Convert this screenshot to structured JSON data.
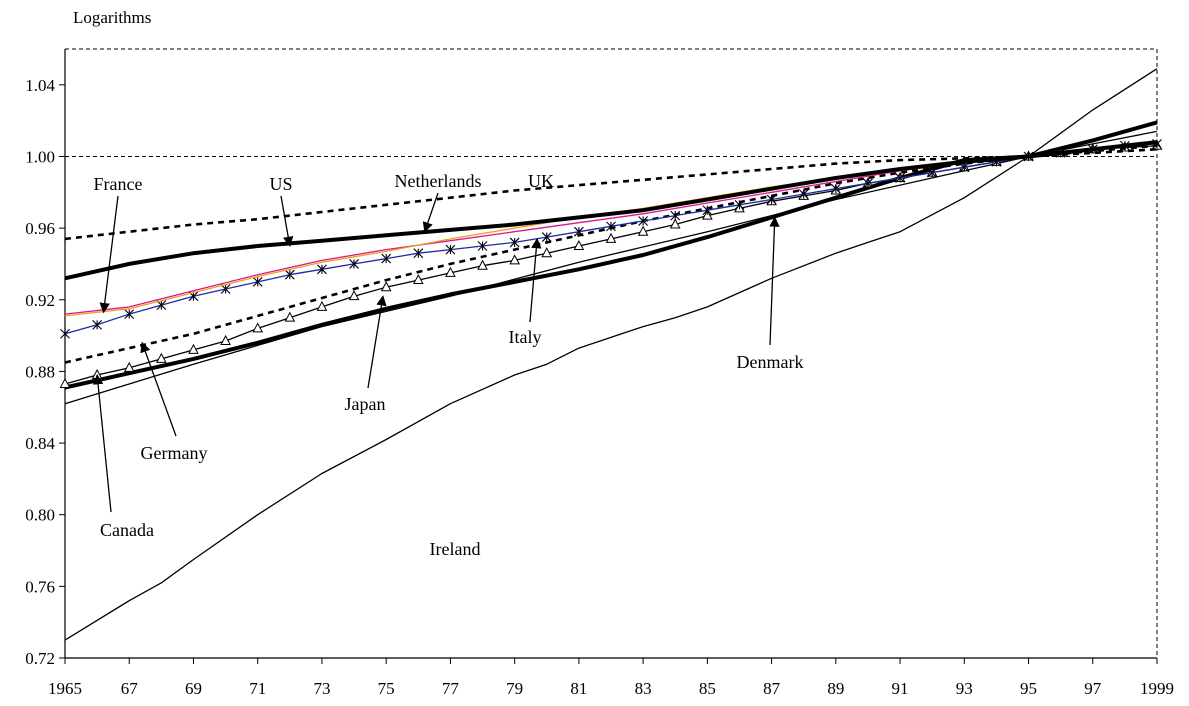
{
  "chart_data": {
    "type": "line",
    "ylabel": "Logarithms",
    "ylim": [
      0.72,
      1.06
    ],
    "yticks": [
      0.72,
      0.76,
      0.8,
      0.84,
      0.88,
      0.92,
      0.96,
      1.0,
      1.04
    ],
    "ytick_labels": [
      "0.72",
      "0.76",
      "0.80",
      "0.84",
      "0.88",
      "0.92",
      "0.96",
      "1.00",
      "1.04"
    ],
    "xlim": [
      1965,
      1999
    ],
    "xticks": [
      1965,
      1967,
      1969,
      1971,
      1973,
      1975,
      1977,
      1979,
      1981,
      1983,
      1985,
      1987,
      1989,
      1991,
      1993,
      1995,
      1997,
      1999
    ],
    "xtick_labels": [
      "1965",
      "67",
      "69",
      "71",
      "73",
      "75",
      "77",
      "79",
      "81",
      "83",
      "85",
      "87",
      "89",
      "91",
      "93",
      "95",
      "97",
      "1999"
    ],
    "grid": false,
    "series": [
      {
        "name": "Ireland",
        "color": "#000000",
        "style": "thin",
        "x": [
          1965,
          1967,
          1968,
          1969,
          1971,
          1973,
          1975,
          1977,
          1979,
          1980,
          1981,
          1983,
          1984,
          1985,
          1987,
          1989,
          1990,
          1991,
          1993,
          1995,
          1997,
          1999
        ],
        "y": [
          0.73,
          0.752,
          0.762,
          0.775,
          0.8,
          0.823,
          0.842,
          0.862,
          0.878,
          0.884,
          0.893,
          0.905,
          0.91,
          0.916,
          0.932,
          0.946,
          0.952,
          0.958,
          0.977,
          1.0,
          1.026,
          1.049
        ]
      },
      {
        "name": "Canada",
        "color": "#000000",
        "style": "thin",
        "x": [
          1965,
          1969,
          1973,
          1977,
          1981,
          1985,
          1989,
          1993,
          1995,
          1997,
          1999
        ],
        "y": [
          0.862,
          0.884,
          0.905,
          0.922,
          0.941,
          0.958,
          0.976,
          0.992,
          1.0,
          1.007,
          1.014
        ]
      },
      {
        "name": "Denmark",
        "color": "#000000",
        "style": "thick",
        "x": [
          1965,
          1967,
          1969,
          1971,
          1973,
          1975,
          1977,
          1979,
          1981,
          1983,
          1985,
          1987,
          1989,
          1991,
          1993,
          1995,
          1997,
          1999
        ],
        "y": [
          0.871,
          0.879,
          0.887,
          0.896,
          0.906,
          0.915,
          0.923,
          0.93,
          0.937,
          0.945,
          0.955,
          0.966,
          0.977,
          0.988,
          0.998,
          1.0,
          1.009,
          1.019
        ]
      },
      {
        "name": "Japan",
        "color": "#000000",
        "style": "triangle",
        "x": [
          1965,
          1966,
          1967,
          1968,
          1969,
          1970,
          1971,
          1972,
          1973,
          1974,
          1975,
          1976,
          1977,
          1978,
          1979,
          1980,
          1981,
          1982,
          1983,
          1984,
          1985,
          1986,
          1987,
          1988,
          1989,
          1990,
          1991,
          1992,
          1993,
          1994,
          1995,
          1996,
          1997,
          1998,
          1999
        ],
        "y": [
          0.873,
          0.878,
          0.882,
          0.887,
          0.892,
          0.897,
          0.904,
          0.91,
          0.916,
          0.922,
          0.927,
          0.931,
          0.935,
          0.939,
          0.942,
          0.946,
          0.95,
          0.954,
          0.958,
          0.962,
          0.967,
          0.971,
          0.975,
          0.978,
          0.981,
          0.985,
          0.988,
          0.991,
          0.994,
          0.997,
          1.0,
          1.002,
          1.004,
          1.005,
          1.006
        ]
      },
      {
        "name": "Germany",
        "color": "#000000",
        "style": "dashed",
        "x": [
          1965,
          1967,
          1969,
          1971,
          1973,
          1975,
          1977,
          1979,
          1981,
          1983,
          1985,
          1987,
          1989,
          1991,
          1993,
          1995,
          1997,
          1999
        ],
        "y": [
          0.885,
          0.893,
          0.901,
          0.911,
          0.921,
          0.931,
          0.94,
          0.948,
          0.956,
          0.964,
          0.971,
          0.978,
          0.985,
          0.991,
          0.996,
          1.0,
          1.003,
          1.006
        ]
      },
      {
        "name": "Italy",
        "color": "#1f2aa8",
        "style": "star",
        "x": [
          1965,
          1966,
          1967,
          1968,
          1969,
          1970,
          1971,
          1972,
          1973,
          1974,
          1975,
          1976,
          1977,
          1978,
          1979,
          1980,
          1981,
          1982,
          1983,
          1984,
          1985,
          1986,
          1987,
          1988,
          1989,
          1990,
          1991,
          1992,
          1993,
          1994,
          1995,
          1996,
          1997,
          1998,
          1999
        ],
        "y": [
          0.901,
          0.906,
          0.912,
          0.917,
          0.922,
          0.926,
          0.93,
          0.934,
          0.937,
          0.94,
          0.943,
          0.946,
          0.948,
          0.95,
          0.952,
          0.955,
          0.958,
          0.961,
          0.964,
          0.967,
          0.97,
          0.973,
          0.976,
          0.979,
          0.982,
          0.985,
          0.988,
          0.991,
          0.994,
          0.997,
          1.0,
          1.002,
          1.004,
          1.006,
          1.007
        ]
      },
      {
        "name": "France",
        "color": "#e0148c",
        "style": "thin",
        "x": [
          1965,
          1967,
          1969,
          1971,
          1973,
          1975,
          1977,
          1979,
          1981,
          1983,
          1985,
          1987,
          1989,
          1991,
          1993,
          1995,
          1997,
          1999
        ],
        "y": [
          0.912,
          0.916,
          0.925,
          0.934,
          0.942,
          0.948,
          0.953,
          0.958,
          0.963,
          0.968,
          0.974,
          0.98,
          0.986,
          0.992,
          0.997,
          1.0,
          1.004,
          1.008
        ]
      },
      {
        "name": "Netherlands",
        "color": "#e8a020",
        "style": "thin",
        "x": [
          1965,
          1967,
          1969,
          1971,
          1973,
          1975,
          1977,
          1979,
          1981,
          1983,
          1985,
          1987,
          1989,
          1991,
          1993,
          1995,
          1997,
          1999
        ],
        "y": [
          0.911,
          0.915,
          0.924,
          0.933,
          0.941,
          0.947,
          0.954,
          0.96,
          0.966,
          0.971,
          0.977,
          0.983,
          0.988,
          0.993,
          0.997,
          1.0,
          1.004,
          1.008
        ]
      },
      {
        "name": "US",
        "color": "#000000",
        "style": "thick",
        "x": [
          1965,
          1967,
          1969,
          1971,
          1973,
          1975,
          1977,
          1979,
          1981,
          1983,
          1985,
          1987,
          1989,
          1991,
          1993,
          1995,
          1997,
          1999
        ],
        "y": [
          0.932,
          0.94,
          0.946,
          0.95,
          0.953,
          0.956,
          0.959,
          0.962,
          0.966,
          0.97,
          0.976,
          0.982,
          0.988,
          0.993,
          0.997,
          1.0,
          1.004,
          1.008
        ]
      },
      {
        "name": "UK",
        "color": "#000000",
        "style": "dashed",
        "x": [
          1965,
          1967,
          1969,
          1971,
          1973,
          1975,
          1977,
          1979,
          1981,
          1983,
          1985,
          1987,
          1989,
          1991,
          1993,
          1995,
          1997,
          1999
        ],
        "y": [
          0.954,
          0.958,
          0.962,
          0.965,
          0.969,
          0.973,
          0.977,
          0.981,
          0.984,
          0.987,
          0.99,
          0.993,
          0.996,
          0.998,
          0.999,
          1.0,
          1.002,
          1.004
        ]
      }
    ],
    "annotations": [
      {
        "text": "France",
        "arrow_to": [
          1966.2,
          0.913
        ]
      },
      {
        "text": "US",
        "arrow_to": [
          1972.0,
          0.95
        ]
      },
      {
        "text": "Netherlands",
        "arrow_to": [
          1976.2,
          0.958
        ]
      },
      {
        "text": "UK"
      },
      {
        "text": "Italy",
        "arrow_to": [
          1979.7,
          0.954
        ]
      },
      {
        "text": "Denmark",
        "arrow_to": [
          1987.1,
          0.966
        ]
      },
      {
        "text": "Japan",
        "arrow_to": [
          1974.9,
          0.922
        ]
      },
      {
        "text": "Germany",
        "arrow_to": [
          1967.4,
          0.896
        ]
      },
      {
        "text": "Canada",
        "arrow_to": [
          1966.0,
          0.878
        ]
      },
      {
        "text": "Ireland"
      }
    ]
  }
}
